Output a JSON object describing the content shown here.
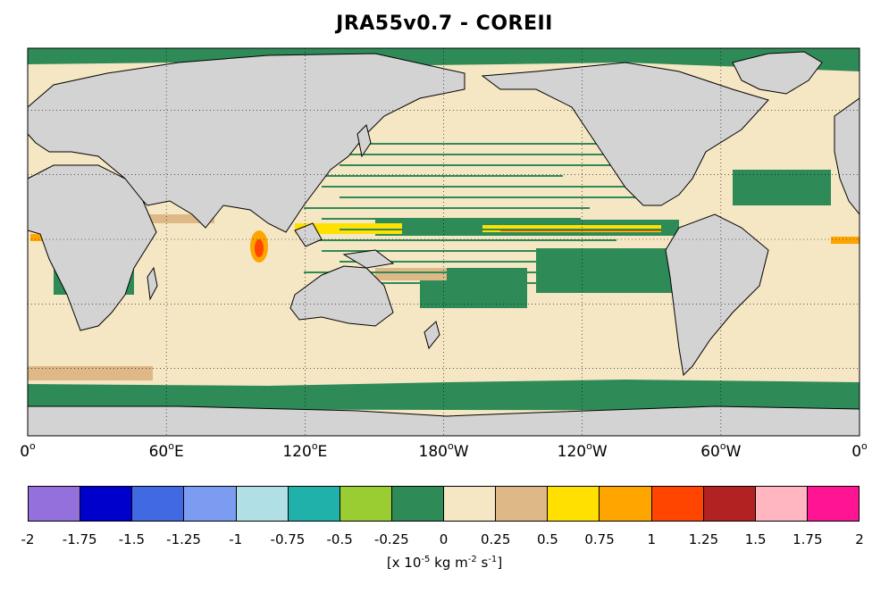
{
  "title": "JRA55v0.7 - COREII",
  "x_ticks": [
    {
      "label": "0",
      "lon": 0
    },
    {
      "label": "60",
      "suffix": "E",
      "lon": 60
    },
    {
      "label": "120",
      "suffix": "E",
      "lon": 120
    },
    {
      "label": "180",
      "suffix": "W",
      "lon": 180
    },
    {
      "label": "120",
      "suffix": "W",
      "lon": 240
    },
    {
      "label": "60",
      "suffix": "W",
      "lon": 300
    },
    {
      "label": "0",
      "lon": 360
    }
  ],
  "degree_mark": "o",
  "colorbar": {
    "colors": [
      "#9370DB",
      "#0000CD",
      "#4169E1",
      "#7B9CF0",
      "#B0E0E6",
      "#20B2AA",
      "#9ACD32",
      "#2E8B57",
      "#F5E6C4",
      "#DEB887",
      "#FFE000",
      "#FFA500",
      "#FF4500",
      "#B22222",
      "#FFB6C1",
      "#FF1493"
    ],
    "ticks": [
      "-2",
      "-1.75",
      "-1.5",
      "-1.25",
      "-1",
      "-0.75",
      "-0.5",
      "-0.25",
      "0",
      "0.25",
      "0.5",
      "0.75",
      "1",
      "1.25",
      "1.5",
      "1.75",
      "2"
    ]
  },
  "units": {
    "prefix": "[x 10",
    "exp1": "-5",
    "mid": " kg m",
    "exp2": "-2",
    "mid2": " s",
    "exp3": "-1",
    "suffix": "]"
  },
  "colors": {
    "land": "#D3D3D3",
    "ocean": "#F5E6C4",
    "green": "#2E8B57",
    "tan": "#DEB887",
    "yellow": "#FFE000",
    "orange": "#FFA500",
    "red": "#FF4500"
  }
}
